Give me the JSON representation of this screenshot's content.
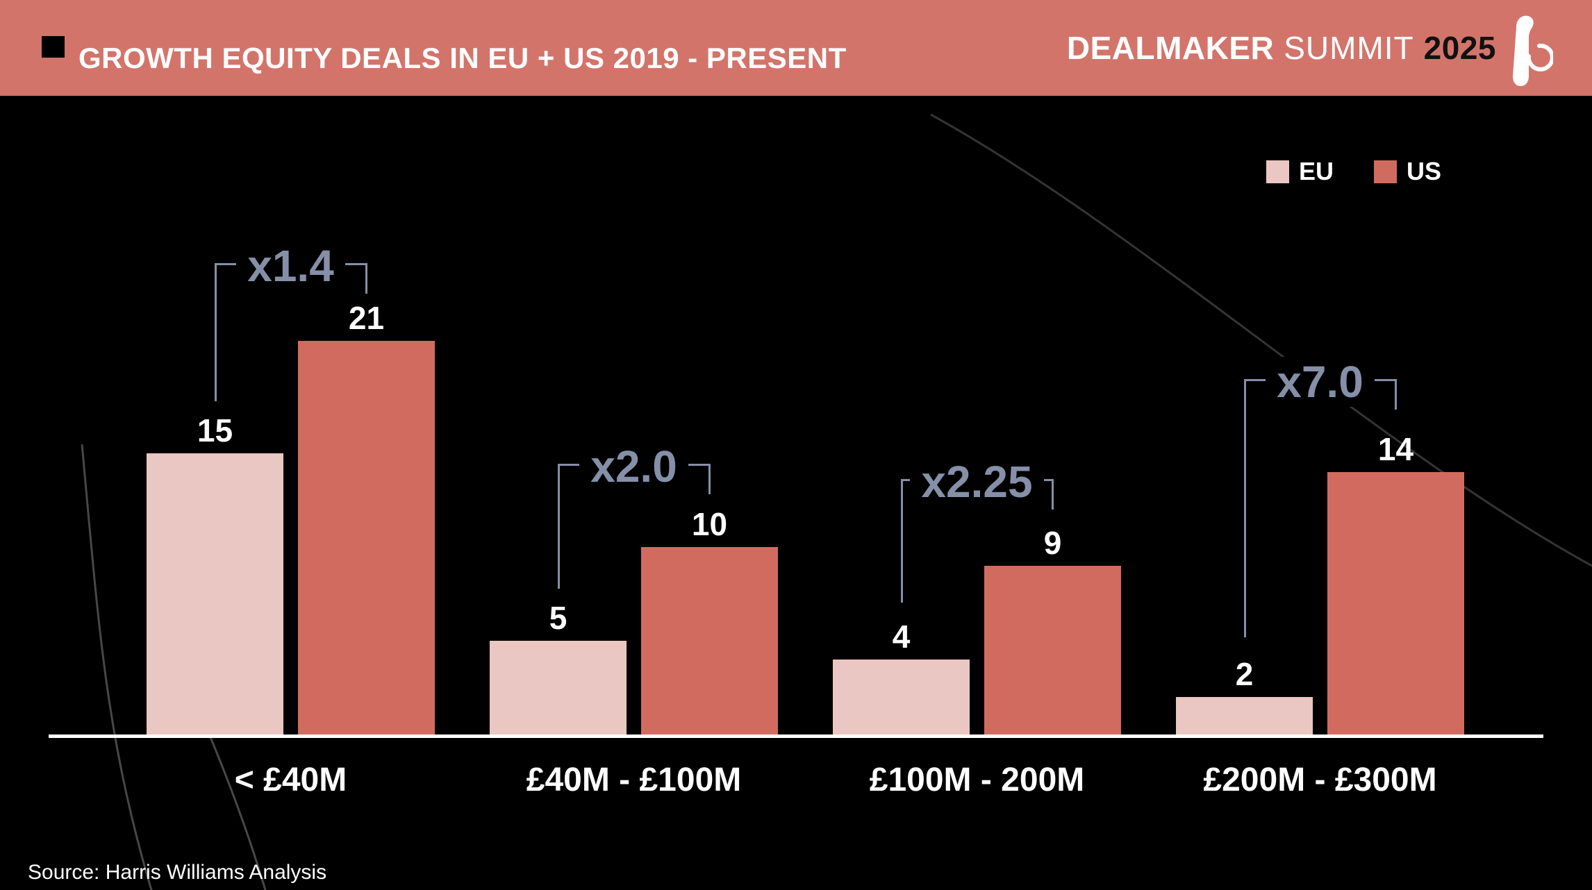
{
  "header": {
    "title": "GROWTH EQUITY DEALS IN EU + US 2019 - PRESENT",
    "brand": {
      "name": "DEALMAKER",
      "event": "SUMMIT",
      "year": "2025"
    },
    "background_color": "#d3746b"
  },
  "legend": {
    "items": [
      {
        "label": "EU",
        "color": "#eac7c2"
      },
      {
        "label": "US",
        "color": "#d26b5f"
      }
    ]
  },
  "source": "Source: Harris Williams Analysis",
  "chart_data": {
    "type": "bar",
    "title": "GROWTH EQUITY DEALS IN EU + US 2019 - PRESENT",
    "categories": [
      "< £40M",
      "£40M - £100M",
      "£100M - 200M",
      "£200M - £300M"
    ],
    "series": [
      {
        "name": "EU",
        "color": "#eac7c2",
        "values": [
          15,
          5,
          4,
          2
        ]
      },
      {
        "name": "US",
        "color": "#d26b5f",
        "values": [
          21,
          10,
          9,
          14
        ]
      }
    ],
    "multipliers": [
      "x1.4",
      "x2.0",
      "x2.25",
      "x7.0"
    ],
    "ylim": [
      0,
      21
    ],
    "grid": false,
    "legend_position": "top-right",
    "annotation_color": "#858FA8",
    "background_color": "#000000",
    "xlabel": "",
    "ylabel": ""
  }
}
